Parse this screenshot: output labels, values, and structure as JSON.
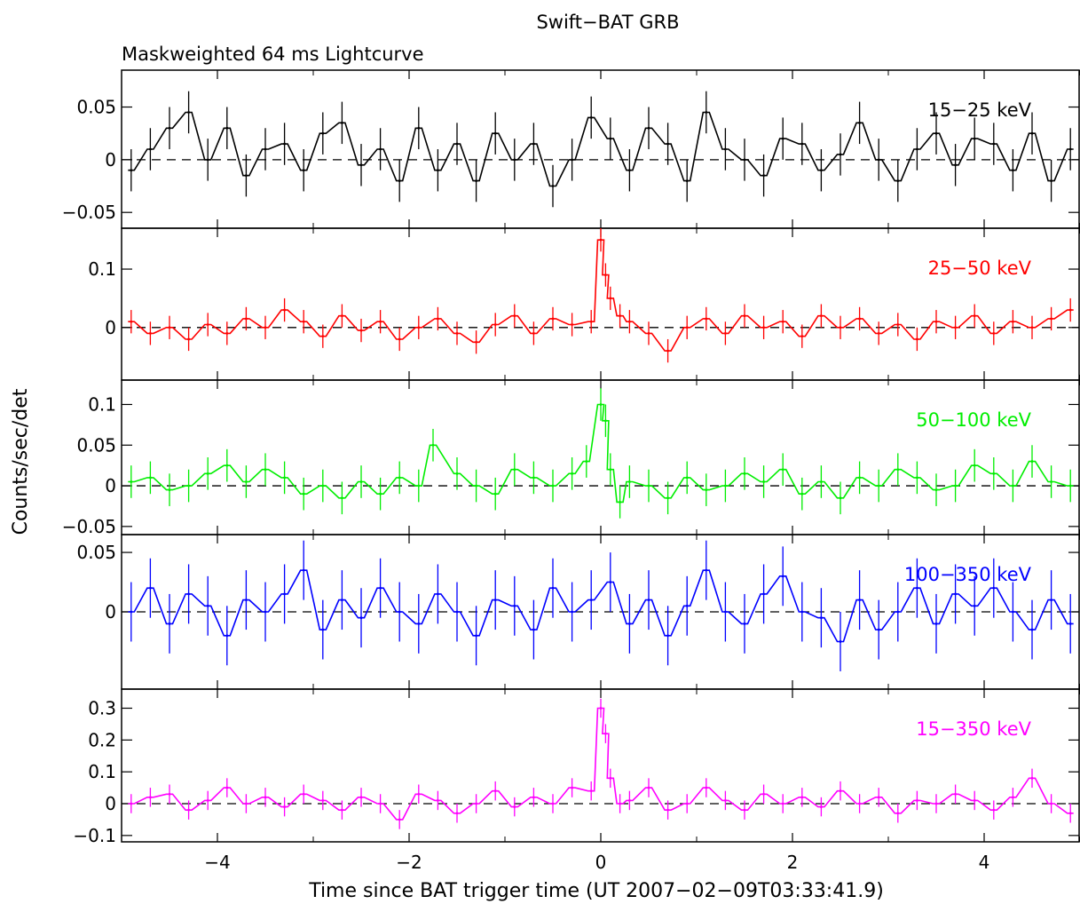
{
  "chart_data": {
    "type": "line",
    "title": "Swift−BAT GRB",
    "subtitle": "Maskweighted 64 ms Lightcurve",
    "xlabel": "Time since BAT trigger time (UT 2007−02−09T03:33:41.9)",
    "ylabel": "Counts/sec/det",
    "xlim": [
      -5,
      5
    ],
    "xticks": [
      -4,
      -2,
      0,
      2,
      4
    ],
    "xtick_labels": [
      "−4",
      "−2",
      "0",
      "2",
      "4"
    ],
    "bin_width": 0.064,
    "reference_line": 0,
    "panels": [
      {
        "name": "15−25 keV",
        "color": "#000000",
        "ylim": [
          -0.065,
          0.085
        ],
        "yticks": [
          -0.05,
          0,
          0.05
        ],
        "ytick_labels": [
          "−0.05",
          "0",
          "0.05"
        ],
        "err": 0.02,
        "x": [
          -4.9,
          -4.7,
          -4.5,
          -4.3,
          -4.1,
          -3.9,
          -3.7,
          -3.5,
          -3.3,
          -3.1,
          -2.9,
          -2.7,
          -2.5,
          -2.3,
          -2.1,
          -1.9,
          -1.7,
          -1.5,
          -1.3,
          -1.1,
          -0.9,
          -0.7,
          -0.5,
          -0.3,
          -0.1,
          0.1,
          0.3,
          0.5,
          0.7,
          0.9,
          1.1,
          1.3,
          1.5,
          1.7,
          1.9,
          2.1,
          2.3,
          2.5,
          2.7,
          2.9,
          3.1,
          3.3,
          3.5,
          3.7,
          3.9,
          4.1,
          4.3,
          4.5,
          4.7,
          4.9
        ],
        "y": [
          -0.01,
          0.01,
          0.03,
          0.045,
          0.0,
          0.03,
          -0.015,
          0.01,
          0.015,
          -0.01,
          0.025,
          0.035,
          -0.005,
          0.01,
          -0.02,
          0.03,
          -0.01,
          0.015,
          -0.02,
          0.025,
          0.0,
          0.015,
          -0.025,
          0.0,
          0.04,
          0.02,
          -0.01,
          0.03,
          0.015,
          -0.02,
          0.045,
          0.01,
          0.0,
          -0.015,
          0.02,
          0.015,
          -0.01,
          0.005,
          0.035,
          0.0,
          -0.02,
          0.01,
          0.025,
          -0.005,
          0.02,
          0.015,
          -0.01,
          0.025,
          -0.02,
          0.01
        ]
      },
      {
        "name": "25−50 keV",
        "color": "#ff0000",
        "ylim": [
          -0.09,
          0.17
        ],
        "yticks": [
          0,
          0.1
        ],
        "ytick_labels": [
          "0",
          "0.1"
        ],
        "err": 0.02,
        "x": [
          -4.9,
          -4.7,
          -4.5,
          -4.3,
          -4.1,
          -3.9,
          -3.7,
          -3.5,
          -3.3,
          -3.1,
          -2.9,
          -2.7,
          -2.5,
          -2.3,
          -2.1,
          -1.9,
          -1.7,
          -1.5,
          -1.3,
          -1.1,
          -0.9,
          -0.7,
          -0.5,
          -0.3,
          -0.1,
          0.0,
          0.05,
          0.1,
          0.2,
          0.3,
          0.5,
          0.7,
          0.9,
          1.1,
          1.3,
          1.5,
          1.7,
          1.9,
          2.1,
          2.3,
          2.5,
          2.7,
          2.9,
          3.1,
          3.3,
          3.5,
          3.7,
          3.9,
          4.1,
          4.3,
          4.5,
          4.7,
          4.9
        ],
        "y": [
          0.01,
          -0.01,
          0.0,
          -0.02,
          0.005,
          -0.01,
          0.015,
          0.0,
          0.03,
          0.01,
          -0.015,
          0.02,
          -0.005,
          0.01,
          -0.02,
          0.0,
          0.015,
          -0.01,
          -0.025,
          0.005,
          0.02,
          -0.01,
          0.015,
          0.005,
          0.01,
          0.15,
          0.09,
          0.05,
          0.02,
          0.01,
          -0.01,
          -0.04,
          0.0,
          0.015,
          -0.01,
          0.02,
          0.0,
          0.01,
          -0.015,
          0.02,
          0.0,
          0.015,
          -0.01,
          0.005,
          -0.02,
          0.01,
          0.0,
          0.02,
          -0.01,
          0.01,
          0.0,
          0.015,
          0.03
        ]
      },
      {
        "name": "50−100 keV",
        "color": "#00ee00",
        "ylim": [
          -0.06,
          0.13
        ],
        "yticks": [
          -0.05,
          0,
          0.05,
          0.1
        ],
        "ytick_labels": [
          "−0.05",
          "0",
          "0.05",
          "0.1"
        ],
        "err": 0.02,
        "x": [
          -4.9,
          -4.7,
          -4.5,
          -4.3,
          -4.1,
          -3.9,
          -3.7,
          -3.5,
          -3.3,
          -3.1,
          -2.9,
          -2.7,
          -2.5,
          -2.3,
          -2.1,
          -1.9,
          -1.75,
          -1.5,
          -1.3,
          -1.1,
          -0.9,
          -0.7,
          -0.5,
          -0.3,
          -0.15,
          0.0,
          0.05,
          0.1,
          0.2,
          0.3,
          0.5,
          0.7,
          0.9,
          1.1,
          1.3,
          1.5,
          1.7,
          1.9,
          2.1,
          2.3,
          2.5,
          2.7,
          2.9,
          3.1,
          3.3,
          3.5,
          3.7,
          3.9,
          4.1,
          4.3,
          4.5,
          4.7,
          4.9
        ],
        "y": [
          0.005,
          0.01,
          -0.005,
          0.0,
          0.015,
          0.025,
          0.005,
          0.02,
          0.01,
          -0.01,
          0.0,
          -0.015,
          0.005,
          -0.01,
          0.01,
          0.0,
          0.05,
          0.015,
          0.0,
          -0.01,
          0.02,
          0.01,
          0.0,
          0.015,
          0.03,
          0.1,
          0.08,
          0.02,
          -0.02,
          0.005,
          0.0,
          -0.015,
          0.01,
          -0.005,
          0.0,
          0.015,
          0.005,
          0.02,
          -0.01,
          0.005,
          -0.015,
          0.01,
          0.0,
          0.02,
          0.01,
          -0.005,
          0.0,
          0.025,
          0.015,
          0.0,
          0.03,
          0.005,
          0.0
        ]
      },
      {
        "name": "100−350 keV",
        "color": "#0000ff",
        "ylim": [
          -0.065,
          0.065
        ],
        "yticks": [
          0,
          0.05
        ],
        "ytick_labels": [
          "0",
          "0.05"
        ],
        "err": 0.025,
        "x": [
          -4.9,
          -4.7,
          -4.5,
          -4.3,
          -4.1,
          -3.9,
          -3.7,
          -3.5,
          -3.3,
          -3.1,
          -2.9,
          -2.7,
          -2.5,
          -2.3,
          -2.1,
          -1.9,
          -1.7,
          -1.5,
          -1.3,
          -1.1,
          -0.9,
          -0.7,
          -0.5,
          -0.3,
          -0.1,
          0.1,
          0.3,
          0.5,
          0.7,
          0.9,
          1.1,
          1.3,
          1.5,
          1.7,
          1.9,
          2.1,
          2.3,
          2.5,
          2.7,
          2.9,
          3.1,
          3.3,
          3.5,
          3.7,
          3.9,
          4.1,
          4.3,
          4.5,
          4.7,
          4.9
        ],
        "y": [
          0.0,
          0.02,
          -0.01,
          0.015,
          0.005,
          -0.02,
          0.01,
          0.0,
          0.015,
          0.035,
          -0.015,
          0.01,
          -0.005,
          0.02,
          0.0,
          -0.01,
          0.015,
          0.0,
          -0.02,
          0.01,
          0.005,
          -0.015,
          0.02,
          0.0,
          0.01,
          0.025,
          -0.01,
          0.01,
          -0.02,
          0.005,
          0.035,
          0.0,
          -0.01,
          0.015,
          0.03,
          0.0,
          -0.005,
          -0.025,
          0.01,
          -0.015,
          0.0,
          0.02,
          -0.01,
          0.015,
          0.005,
          0.02,
          0.0,
          -0.015,
          0.01,
          -0.01
        ]
      },
      {
        "name": "15−350 keV",
        "color": "#ff00ff",
        "ylim": [
          -0.12,
          0.36
        ],
        "yticks": [
          -0.1,
          0,
          0.1,
          0.2,
          0.3
        ],
        "ytick_labels": [
          "−0.1",
          "0",
          "0.1",
          "0.2",
          "0.3"
        ],
        "err": 0.03,
        "x": [
          -4.9,
          -4.7,
          -4.5,
          -4.3,
          -4.1,
          -3.9,
          -3.7,
          -3.5,
          -3.3,
          -3.1,
          -2.9,
          -2.7,
          -2.5,
          -2.3,
          -2.1,
          -1.9,
          -1.7,
          -1.5,
          -1.3,
          -1.1,
          -0.9,
          -0.7,
          -0.5,
          -0.3,
          -0.1,
          0.0,
          0.05,
          0.1,
          0.2,
          0.3,
          0.5,
          0.7,
          0.9,
          1.1,
          1.3,
          1.5,
          1.7,
          1.9,
          2.1,
          2.3,
          2.5,
          2.7,
          2.9,
          3.1,
          3.3,
          3.5,
          3.7,
          3.9,
          4.1,
          4.3,
          4.5,
          4.7,
          4.9
        ],
        "y": [
          0.0,
          0.02,
          0.03,
          -0.02,
          0.01,
          0.05,
          0.0,
          0.02,
          -0.01,
          0.03,
          0.01,
          -0.02,
          0.02,
          0.0,
          -0.05,
          0.03,
          0.01,
          -0.03,
          0.0,
          0.04,
          -0.01,
          0.02,
          0.0,
          0.05,
          0.04,
          0.3,
          0.22,
          0.08,
          0.0,
          0.01,
          0.05,
          -0.02,
          0.0,
          0.05,
          0.01,
          -0.02,
          0.03,
          0.0,
          0.02,
          -0.01,
          0.04,
          0.0,
          0.02,
          -0.03,
          0.01,
          0.0,
          0.03,
          0.01,
          -0.02,
          0.02,
          0.08,
          0.0,
          -0.03
        ]
      }
    ]
  }
}
